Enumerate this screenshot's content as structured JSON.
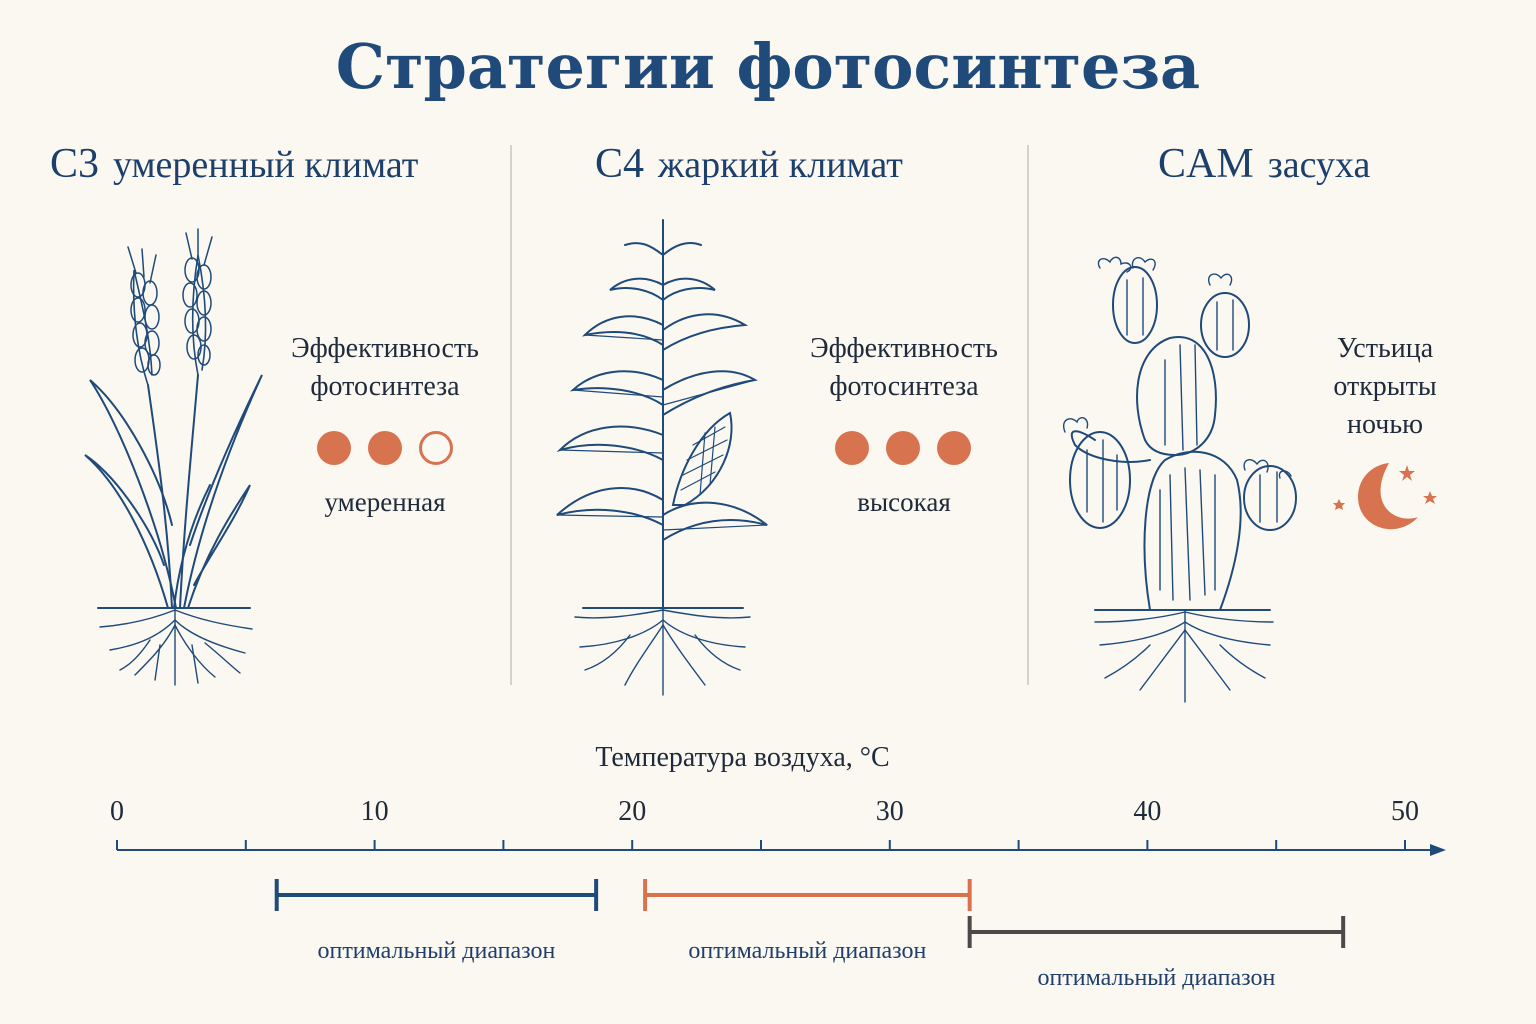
{
  "title": "Стратегии фотосинтеза",
  "columns": [
    {
      "code": "C3",
      "climate": "умеренный климат",
      "side_label_lines": [
        "Эффективность",
        "фотосинтеза"
      ],
      "efficiency_filled": 2,
      "efficiency_total": 3,
      "efficiency_word": "умеренная"
    },
    {
      "code": "C4",
      "climate": "жаркий климат",
      "side_label_lines": [
        "Эффективность",
        "фотосинтеза"
      ],
      "efficiency_filled": 3,
      "efficiency_total": 3,
      "efficiency_word": "высокая"
    },
    {
      "code": "CAM",
      "climate": "засуха",
      "side_label_lines": [
        "Устьица",
        "открыты",
        "ночью"
      ]
    }
  ],
  "colors": {
    "navy": "#1f4a79",
    "orange": "#d7734f",
    "gray": "#4a4a4a"
  },
  "icons": [
    "wheat-icon",
    "corn-icon",
    "cactus-icon",
    "moon-icon",
    "star-icon"
  ],
  "axis": {
    "title": "Температура воздуха, °C",
    "min": 0,
    "max": 50,
    "ticks": [
      "0",
      "10",
      "20",
      "30",
      "40",
      "50"
    ]
  },
  "ranges": [
    {
      "label": "оптимальный диапазон",
      "from": 6.2,
      "to": 18.6,
      "color": "#1f4a79"
    },
    {
      "label": "оптимальный диапазон",
      "from": 20.5,
      "to": 33.1,
      "color": "#d7734f"
    },
    {
      "label": "оптимальный диапазон",
      "from": 33.1,
      "to": 47.6,
      "color": "#4a4a4a"
    }
  ]
}
